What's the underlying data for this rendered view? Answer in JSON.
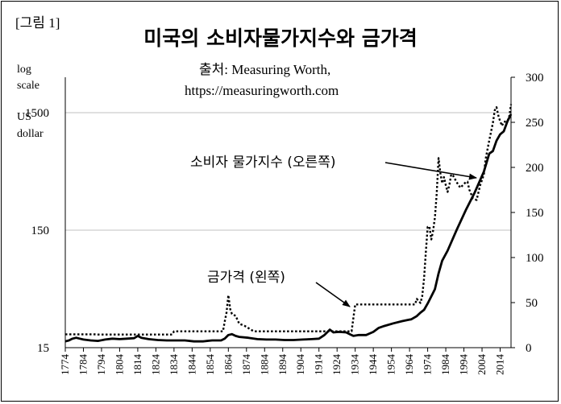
{
  "figure_tag": "[그림 1]",
  "title": "미국의 소비자물가지수와 금가격",
  "source_line1": "출처: Measuring Worth,",
  "source_line2": "https://measuringworth.com",
  "left_axis_label_lines": [
    "log",
    "scale",
    "US",
    "dollar"
  ],
  "annotations": {
    "cpi": "소비자 물가지수 (오른쪽)",
    "gold": "금가격 (왼쪽)"
  },
  "colors": {
    "line": "#000000",
    "grid": "#c0c0c0",
    "background": "#ffffff"
  },
  "chart_data": {
    "type": "line",
    "x_tick_labels": [
      "1774",
      "1784",
      "1794",
      "1804",
      "1814",
      "1824",
      "1834",
      "1844",
      "1854",
      "1864",
      "1874",
      "1884",
      "1894",
      "1904",
      "1914",
      "1924",
      "1934",
      "1944",
      "1954",
      "1964",
      "1974",
      "1984",
      "1994",
      "2004",
      "2014"
    ],
    "y_left": {
      "scale": "log",
      "range": [
        15,
        3000
      ],
      "ticks": [
        15,
        150,
        1500
      ],
      "tick_labels": [
        "15",
        "150",
        "1500"
      ]
    },
    "y_right": {
      "scale": "linear",
      "range": [
        0,
        300
      ],
      "ticks": [
        0,
        50,
        100,
        150,
        200,
        250,
        300
      ],
      "tick_labels": [
        "0",
        "50",
        "100",
        "150",
        "200",
        "250",
        "300"
      ]
    },
    "grid": "horizontal at 150 and 1500 (left axis)",
    "series": [
      {
        "name": "소비자 물가지수 (오른쪽)",
        "axis": "right",
        "style": "solid",
        "points": [
          [
            1774,
            7
          ],
          [
            1776,
            8
          ],
          [
            1778,
            10
          ],
          [
            1780,
            11
          ],
          [
            1782,
            10
          ],
          [
            1784,
            9
          ],
          [
            1788,
            8
          ],
          [
            1792,
            7.5
          ],
          [
            1796,
            9
          ],
          [
            1800,
            10
          ],
          [
            1804,
            9.5
          ],
          [
            1808,
            10
          ],
          [
            1812,
            10.5
          ],
          [
            1814,
            13
          ],
          [
            1816,
            11
          ],
          [
            1820,
            9.5
          ],
          [
            1825,
            8.5
          ],
          [
            1830,
            8
          ],
          [
            1835,
            8
          ],
          [
            1840,
            8
          ],
          [
            1845,
            7
          ],
          [
            1850,
            7
          ],
          [
            1855,
            8
          ],
          [
            1860,
            8
          ],
          [
            1862,
            10
          ],
          [
            1864,
            14
          ],
          [
            1866,
            15
          ],
          [
            1868,
            13
          ],
          [
            1870,
            12
          ],
          [
            1875,
            11
          ],
          [
            1880,
            9.5
          ],
          [
            1885,
            9
          ],
          [
            1890,
            9
          ],
          [
            1895,
            8.5
          ],
          [
            1900,
            8.5
          ],
          [
            1905,
            9
          ],
          [
            1910,
            9.5
          ],
          [
            1914,
            10
          ],
          [
            1917,
            14
          ],
          [
            1918,
            16
          ],
          [
            1920,
            20
          ],
          [
            1922,
            17
          ],
          [
            1925,
            17.5
          ],
          [
            1929,
            17
          ],
          [
            1931,
            15
          ],
          [
            1933,
            13
          ],
          [
            1936,
            14
          ],
          [
            1940,
            14
          ],
          [
            1944,
            17.5
          ],
          [
            1947,
            22
          ],
          [
            1950,
            24
          ],
          [
            1955,
            27
          ],
          [
            1960,
            29.5
          ],
          [
            1965,
            31.5
          ],
          [
            1968,
            35
          ],
          [
            1970,
            38.8
          ],
          [
            1972,
            42
          ],
          [
            1974,
            49
          ],
          [
            1976,
            57
          ],
          [
            1978,
            65
          ],
          [
            1980,
            82.4
          ],
          [
            1982,
            96.5
          ],
          [
            1985,
            107.6
          ],
          [
            1990,
            130.7
          ],
          [
            1995,
            152.4
          ],
          [
            2000,
            172.2
          ],
          [
            2005,
            195.3
          ],
          [
            2008,
            215.3
          ],
          [
            2010,
            218.1
          ],
          [
            2012,
            229.6
          ],
          [
            2014,
            236.7
          ],
          [
            2016,
            240
          ],
          [
            2018,
            251
          ],
          [
            2020,
            259
          ]
        ]
      },
      {
        "name": "금가격 (왼쪽)",
        "axis": "left",
        "style": "dotted",
        "points": [
          [
            1774,
            19.5
          ],
          [
            1790,
            19.5
          ],
          [
            1792,
            19.39
          ],
          [
            1833,
            19.39
          ],
          [
            1834,
            20.67
          ],
          [
            1861,
            20.67
          ],
          [
            1862,
            25
          ],
          [
            1863,
            30
          ],
          [
            1864,
            42
          ],
          [
            1865,
            32
          ],
          [
            1866,
            29
          ],
          [
            1868,
            28
          ],
          [
            1870,
            24
          ],
          [
            1873,
            23
          ],
          [
            1878,
            20.67
          ],
          [
            1932,
            20.67
          ],
          [
            1934,
            35
          ],
          [
            1967,
            35
          ],
          [
            1968,
            39
          ],
          [
            1970,
            36
          ],
          [
            1971,
            41
          ],
          [
            1972,
            58
          ],
          [
            1973,
            97
          ],
          [
            1974,
            160
          ],
          [
            1975,
            161
          ],
          [
            1976,
            125
          ],
          [
            1977,
            148
          ],
          [
            1978,
            193
          ],
          [
            1979,
            307
          ],
          [
            1980,
            615
          ],
          [
            1981,
            460
          ],
          [
            1982,
            376
          ],
          [
            1983,
            424
          ],
          [
            1984,
            361
          ],
          [
            1985,
            317
          ],
          [
            1986,
            368
          ],
          [
            1987,
            447
          ],
          [
            1988,
            437
          ],
          [
            1990,
            383
          ],
          [
            1992,
            344
          ],
          [
            1995,
            384
          ],
          [
            1996,
            388
          ],
          [
            1997,
            331
          ],
          [
            1999,
            279
          ],
          [
            2001,
            271
          ],
          [
            2003,
            363
          ],
          [
            2005,
            445
          ],
          [
            2006,
            604
          ],
          [
            2008,
            872
          ],
          [
            2010,
            1225
          ],
          [
            2011,
            1572
          ],
          [
            2012,
            1669
          ],
          [
            2013,
            1411
          ],
          [
            2014,
            1266
          ],
          [
            2015,
            1160
          ],
          [
            2016,
            1250
          ],
          [
            2018,
            1268
          ],
          [
            2019,
            1393
          ],
          [
            2020,
            1770
          ]
        ]
      }
    ]
  }
}
